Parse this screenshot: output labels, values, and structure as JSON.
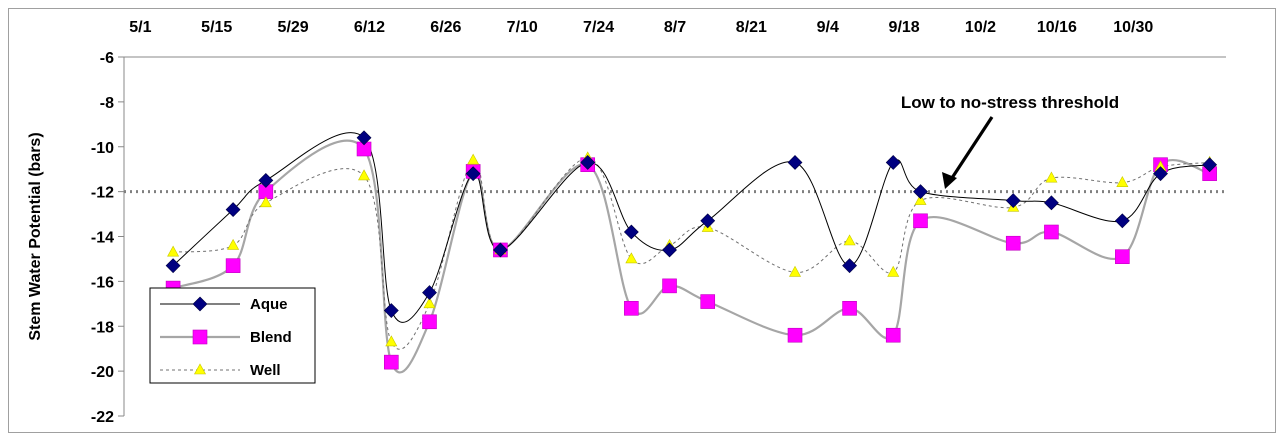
{
  "chart_data": {
    "type": "line",
    "title": "",
    "ylabel": "Stem Water Potential (bars)",
    "xlabel": "",
    "x_tick_labels": [
      "5/1",
      "5/15",
      "5/29",
      "6/12",
      "6/26",
      "7/10",
      "7/24",
      "8/7",
      "8/21",
      "9/4",
      "9/18",
      "10/2",
      "10/16",
      "10/30"
    ],
    "x_tick_days": [
      0,
      14,
      28,
      42,
      56,
      70,
      84,
      98,
      112,
      126,
      140,
      154,
      168,
      182
    ],
    "xlim_days": [
      -3,
      199
    ],
    "ylim": [
      -22,
      -6
    ],
    "y_ticks": [
      -6,
      -8,
      -10,
      -12,
      -14,
      -16,
      -18,
      -20,
      -22
    ],
    "x_axis_position": "top",
    "grid": false,
    "legend_position": "bottom-left",
    "threshold": {
      "value": -12,
      "label": "Low to no-stress threshold"
    },
    "series": [
      {
        "name": "Aque",
        "color": "#000080",
        "marker": "diamond",
        "line": "solid-thin-black",
        "points": [
          {
            "day": 6,
            "y": -15.3
          },
          {
            "day": 17,
            "y": -12.8
          },
          {
            "day": 23,
            "y": -11.5
          },
          {
            "day": 41,
            "y": -9.6
          },
          {
            "day": 46,
            "y": -17.3
          },
          {
            "day": 53,
            "y": -16.5
          },
          {
            "day": 61,
            "y": -11.2
          },
          {
            "day": 66,
            "y": -14.6
          },
          {
            "day": 82,
            "y": -10.7
          },
          {
            "day": 90,
            "y": -13.8
          },
          {
            "day": 97,
            "y": -14.6
          },
          {
            "day": 104,
            "y": -13.3
          },
          {
            "day": 120,
            "y": -10.7
          },
          {
            "day": 130,
            "y": -15.3
          },
          {
            "day": 138,
            "y": -10.7
          },
          {
            "day": 143,
            "y": -12.0
          },
          {
            "day": 160,
            "y": -12.4
          },
          {
            "day": 167,
            "y": -12.5
          },
          {
            "day": 180,
            "y": -13.3
          },
          {
            "day": 187,
            "y": -11.2
          },
          {
            "day": 196,
            "y": -10.8
          }
        ]
      },
      {
        "name": "Blend",
        "color": "#ff00ff",
        "marker": "square",
        "line": "solid-gray",
        "points": [
          {
            "day": 6,
            "y": -16.3
          },
          {
            "day": 17,
            "y": -15.3
          },
          {
            "day": 23,
            "y": -12.0
          },
          {
            "day": 41,
            "y": -10.1
          },
          {
            "day": 46,
            "y": -19.6
          },
          {
            "day": 53,
            "y": -17.8
          },
          {
            "day": 61,
            "y": -11.1
          },
          {
            "day": 66,
            "y": -14.6
          },
          {
            "day": 82,
            "y": -10.8
          },
          {
            "day": 90,
            "y": -17.2
          },
          {
            "day": 97,
            "y": -16.2
          },
          {
            "day": 104,
            "y": -16.9
          },
          {
            "day": 120,
            "y": -18.4
          },
          {
            "day": 130,
            "y": -17.2
          },
          {
            "day": 138,
            "y": -18.4
          },
          {
            "day": 143,
            "y": -13.3
          },
          {
            "day": 160,
            "y": -14.3
          },
          {
            "day": 167,
            "y": -13.8
          },
          {
            "day": 180,
            "y": -14.9
          },
          {
            "day": 187,
            "y": -10.8
          },
          {
            "day": 196,
            "y": -11.2
          }
        ]
      },
      {
        "name": "Well",
        "color": "#ffff00",
        "marker": "triangle",
        "line": "dashed-thin",
        "points": [
          {
            "day": 6,
            "y": -14.7
          },
          {
            "day": 17,
            "y": -14.4
          },
          {
            "day": 23,
            "y": -12.5
          },
          {
            "day": 41,
            "y": -11.3
          },
          {
            "day": 46,
            "y": -18.7
          },
          {
            "day": 53,
            "y": -17.0
          },
          {
            "day": 61,
            "y": -10.6
          },
          {
            "day": 66,
            "y": -14.6
          },
          {
            "day": 82,
            "y": -10.5
          },
          {
            "day": 90,
            "y": -15.0
          },
          {
            "day": 97,
            "y": -14.4
          },
          {
            "day": 104,
            "y": -13.6
          },
          {
            "day": 120,
            "y": -15.6
          },
          {
            "day": 130,
            "y": -14.2
          },
          {
            "day": 138,
            "y": -15.6
          },
          {
            "day": 143,
            "y": -12.4
          },
          {
            "day": 160,
            "y": -12.7
          },
          {
            "day": 167,
            "y": -11.4
          },
          {
            "day": 180,
            "y": -11.6
          },
          {
            "day": 187,
            "y": -10.9
          },
          {
            "day": 196,
            "y": -10.7
          }
        ]
      }
    ]
  }
}
